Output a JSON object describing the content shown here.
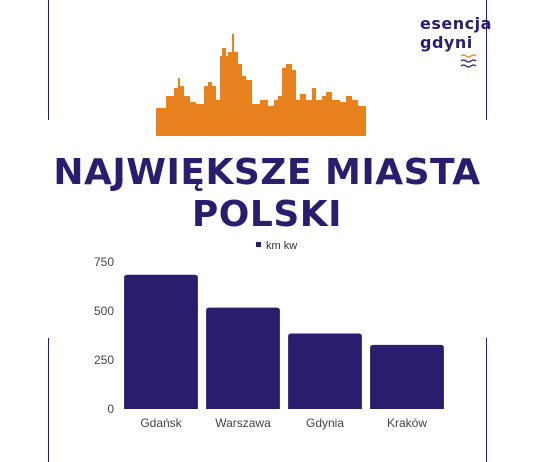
{
  "brand": {
    "line1": "esencja",
    "line2": "gdyni",
    "icon": "waves-icon",
    "colors": {
      "primary": "#2a1d6e",
      "accent": "#e8821e"
    }
  },
  "skyline_icon": "city-skyline-icon",
  "title": {
    "line1": "NAJWIĘKSZE MIASTA",
    "line2": "POLSKI"
  },
  "chart_data": {
    "type": "bar",
    "categories": [
      "Gdańsk",
      "Warszawa",
      "Gdynia",
      "Kraków"
    ],
    "series": [
      {
        "name": "km kw",
        "values": [
          685,
          517,
          385,
          327
        ],
        "color": "#2a1d6e"
      }
    ],
    "ylim": [
      0,
      750
    ],
    "yticks": [
      "0",
      "250",
      "500",
      "750"
    ],
    "grid": false,
    "legend": "top-center"
  }
}
